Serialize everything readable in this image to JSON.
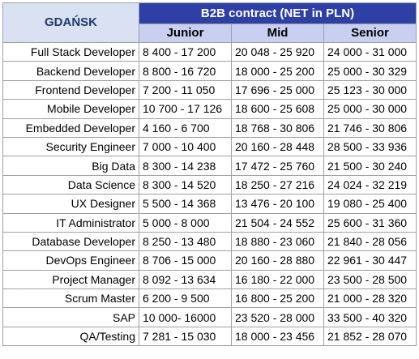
{
  "table": {
    "city": "GDAŃSK",
    "contract_header": "B2B contract (NET in PLN)",
    "levels": [
      "Junior",
      "Mid",
      "Senior"
    ],
    "rows": [
      {
        "role": "Full Stack Developer",
        "junior": "8 400 - 17 200",
        "mid": "20 048 - 25 920",
        "senior": "24 000 - 31 000"
      },
      {
        "role": "Backend Developer",
        "junior": "8 800 - 16 720",
        "mid": "18 000 - 25 200",
        "senior": "25 000 - 30 329"
      },
      {
        "role": "Frontend Developer",
        "junior": "7 200 - 11 050",
        "mid": "17 696 - 25 000",
        "senior": "25 123 - 30 000"
      },
      {
        "role": "Mobile Developer",
        "junior": "10 700 - 17 126",
        "mid": "18 600 - 25 608",
        "senior": "25 000 - 30 000"
      },
      {
        "role": "Embedded Developer",
        "junior": "4 160 - 6 700",
        "mid": "18 768 - 30 806",
        "senior": "21 746 - 30 806"
      },
      {
        "role": "Security Engineer",
        "junior": "7 000 - 10 400",
        "mid": "20 160 - 28 448",
        "senior": "28 500 - 33 936"
      },
      {
        "role": "Big Data",
        "junior": "8 300 - 14 238",
        "mid": "17 472 - 25 760",
        "senior": "21 500 - 30 240"
      },
      {
        "role": "Data Science",
        "junior": "8 300 - 14 520",
        "mid": "18 250 - 27 216",
        "senior": "24 024 - 32 219"
      },
      {
        "role": "UX Designer",
        "junior": "5 500 - 14 368",
        "mid": "13 476 - 20 100",
        "senior": "19 080 - 25 400"
      },
      {
        "role": "IT Administrator",
        "junior": "5 000 - 8 000",
        "mid": "21 504 - 24 552",
        "senior": "25 600 - 31 360"
      },
      {
        "role": "Database Developer",
        "junior": "8 250 - 13 480",
        "mid": "18 880 - 23 060",
        "senior": "21 840 - 28 056"
      },
      {
        "role": "DevOps Engineer",
        "junior": "8 706 - 15 000",
        "mid": "20 160 - 28 880",
        "senior": "22 961 - 30 447"
      },
      {
        "role": "Project Manager",
        "junior": "8 092 - 13 634",
        "mid": "16 180 - 22 000",
        "senior": "23 500 - 28 500"
      },
      {
        "role": "Scrum Master",
        "junior": "6 200 - 9 500",
        "mid": "16 800 - 25 200",
        "senior": "21 000 - 28 320"
      },
      {
        "role": "SAP",
        "junior": "10 000- 16000",
        "mid": "23 520 - 28 000",
        "senior": "33 500 - 40 320"
      },
      {
        "role": "QA/Testing",
        "junior": "7 281 - 15 030",
        "mid": "18 000 - 23 456",
        "senior": "21 852 - 28 070"
      }
    ]
  }
}
